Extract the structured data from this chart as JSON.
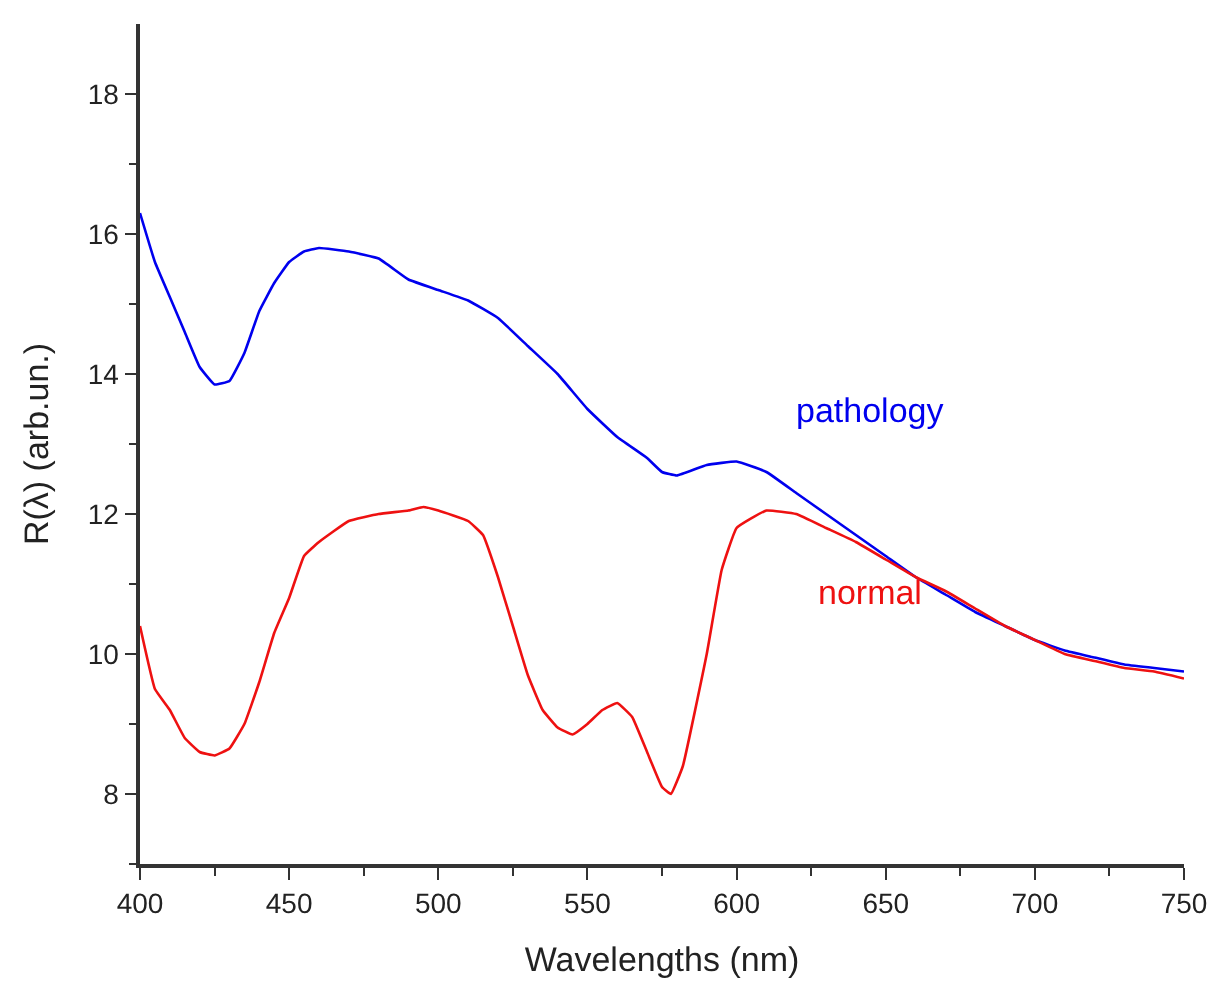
{
  "chart_data": {
    "type": "line",
    "xlabel": "Wavelengths (nm)",
    "ylabel": "R(λ) (arb.un.)",
    "xlim": [
      400,
      750
    ],
    "ylim": [
      7,
      19
    ],
    "xticks": [
      400,
      {
        "value": 425,
        "label": null
      },
      450,
      {
        "value": 475,
        "label": null
      },
      500,
      {
        "value": 525,
        "label": null
      },
      550,
      {
        "value": 575,
        "label": null
      },
      600,
      {
        "value": 625,
        "label": null
      },
      650,
      {
        "value": 675,
        "label": null
      },
      700,
      {
        "value": 725,
        "label": null
      },
      750
    ],
    "yticks": [
      {
        "value": 7,
        "label": null
      },
      8,
      {
        "value": 9,
        "label": null
      },
      10,
      {
        "value": 11,
        "label": null
      },
      12,
      {
        "value": 13,
        "label": null
      },
      14,
      {
        "value": 15,
        "label": null
      },
      16,
      {
        "value": 17,
        "label": null
      },
      18
    ],
    "legend": false,
    "marker": "none",
    "line_style": "solid",
    "series": [
      {
        "name": "pathology",
        "color": "#0000ee",
        "x": [
          400,
          405,
          410,
          415,
          420,
          425,
          430,
          435,
          440,
          445,
          450,
          455,
          460,
          470,
          480,
          490,
          500,
          510,
          520,
          530,
          540,
          550,
          560,
          570,
          575,
          580,
          590,
          600,
          610,
          620,
          630,
          640,
          650,
          660,
          670,
          680,
          690,
          700,
          710,
          720,
          730,
          740,
          750
        ],
        "values": [
          16.3,
          15.6,
          15.1,
          14.6,
          14.1,
          13.85,
          13.9,
          14.3,
          14.9,
          15.3,
          15.6,
          15.75,
          15.8,
          15.75,
          15.65,
          15.35,
          15.2,
          15.05,
          14.8,
          14.4,
          14.0,
          13.5,
          13.1,
          12.8,
          12.6,
          12.55,
          12.7,
          12.75,
          12.6,
          12.3,
          12.0,
          11.7,
          11.4,
          11.1,
          10.85,
          10.6,
          10.4,
          10.2,
          10.05,
          9.95,
          9.85,
          9.8,
          9.75
        ]
      },
      {
        "name": "normal",
        "color": "#ee1111",
        "x": [
          400,
          405,
          410,
          415,
          420,
          425,
          430,
          435,
          440,
          445,
          450,
          455,
          460,
          470,
          480,
          490,
          495,
          500,
          510,
          515,
          520,
          525,
          530,
          535,
          540,
          545,
          550,
          555,
          560,
          565,
          570,
          575,
          578,
          582,
          590,
          595,
          600,
          610,
          620,
          630,
          640,
          650,
          660,
          670,
          680,
          690,
          700,
          710,
          720,
          730,
          740,
          750
        ],
        "values": [
          10.4,
          9.5,
          9.2,
          8.8,
          8.6,
          8.55,
          8.65,
          9.0,
          9.6,
          10.3,
          10.8,
          11.4,
          11.6,
          11.9,
          12.0,
          12.05,
          12.1,
          12.05,
          11.9,
          11.7,
          11.1,
          10.4,
          9.7,
          9.2,
          8.95,
          8.85,
          9.0,
          9.2,
          9.3,
          9.1,
          8.6,
          8.1,
          8.0,
          8.4,
          10.0,
          11.2,
          11.8,
          12.05,
          12.0,
          11.8,
          11.6,
          11.35,
          11.1,
          10.9,
          10.65,
          10.4,
          10.2,
          10.0,
          9.9,
          9.8,
          9.75,
          9.65
        ]
      }
    ]
  }
}
